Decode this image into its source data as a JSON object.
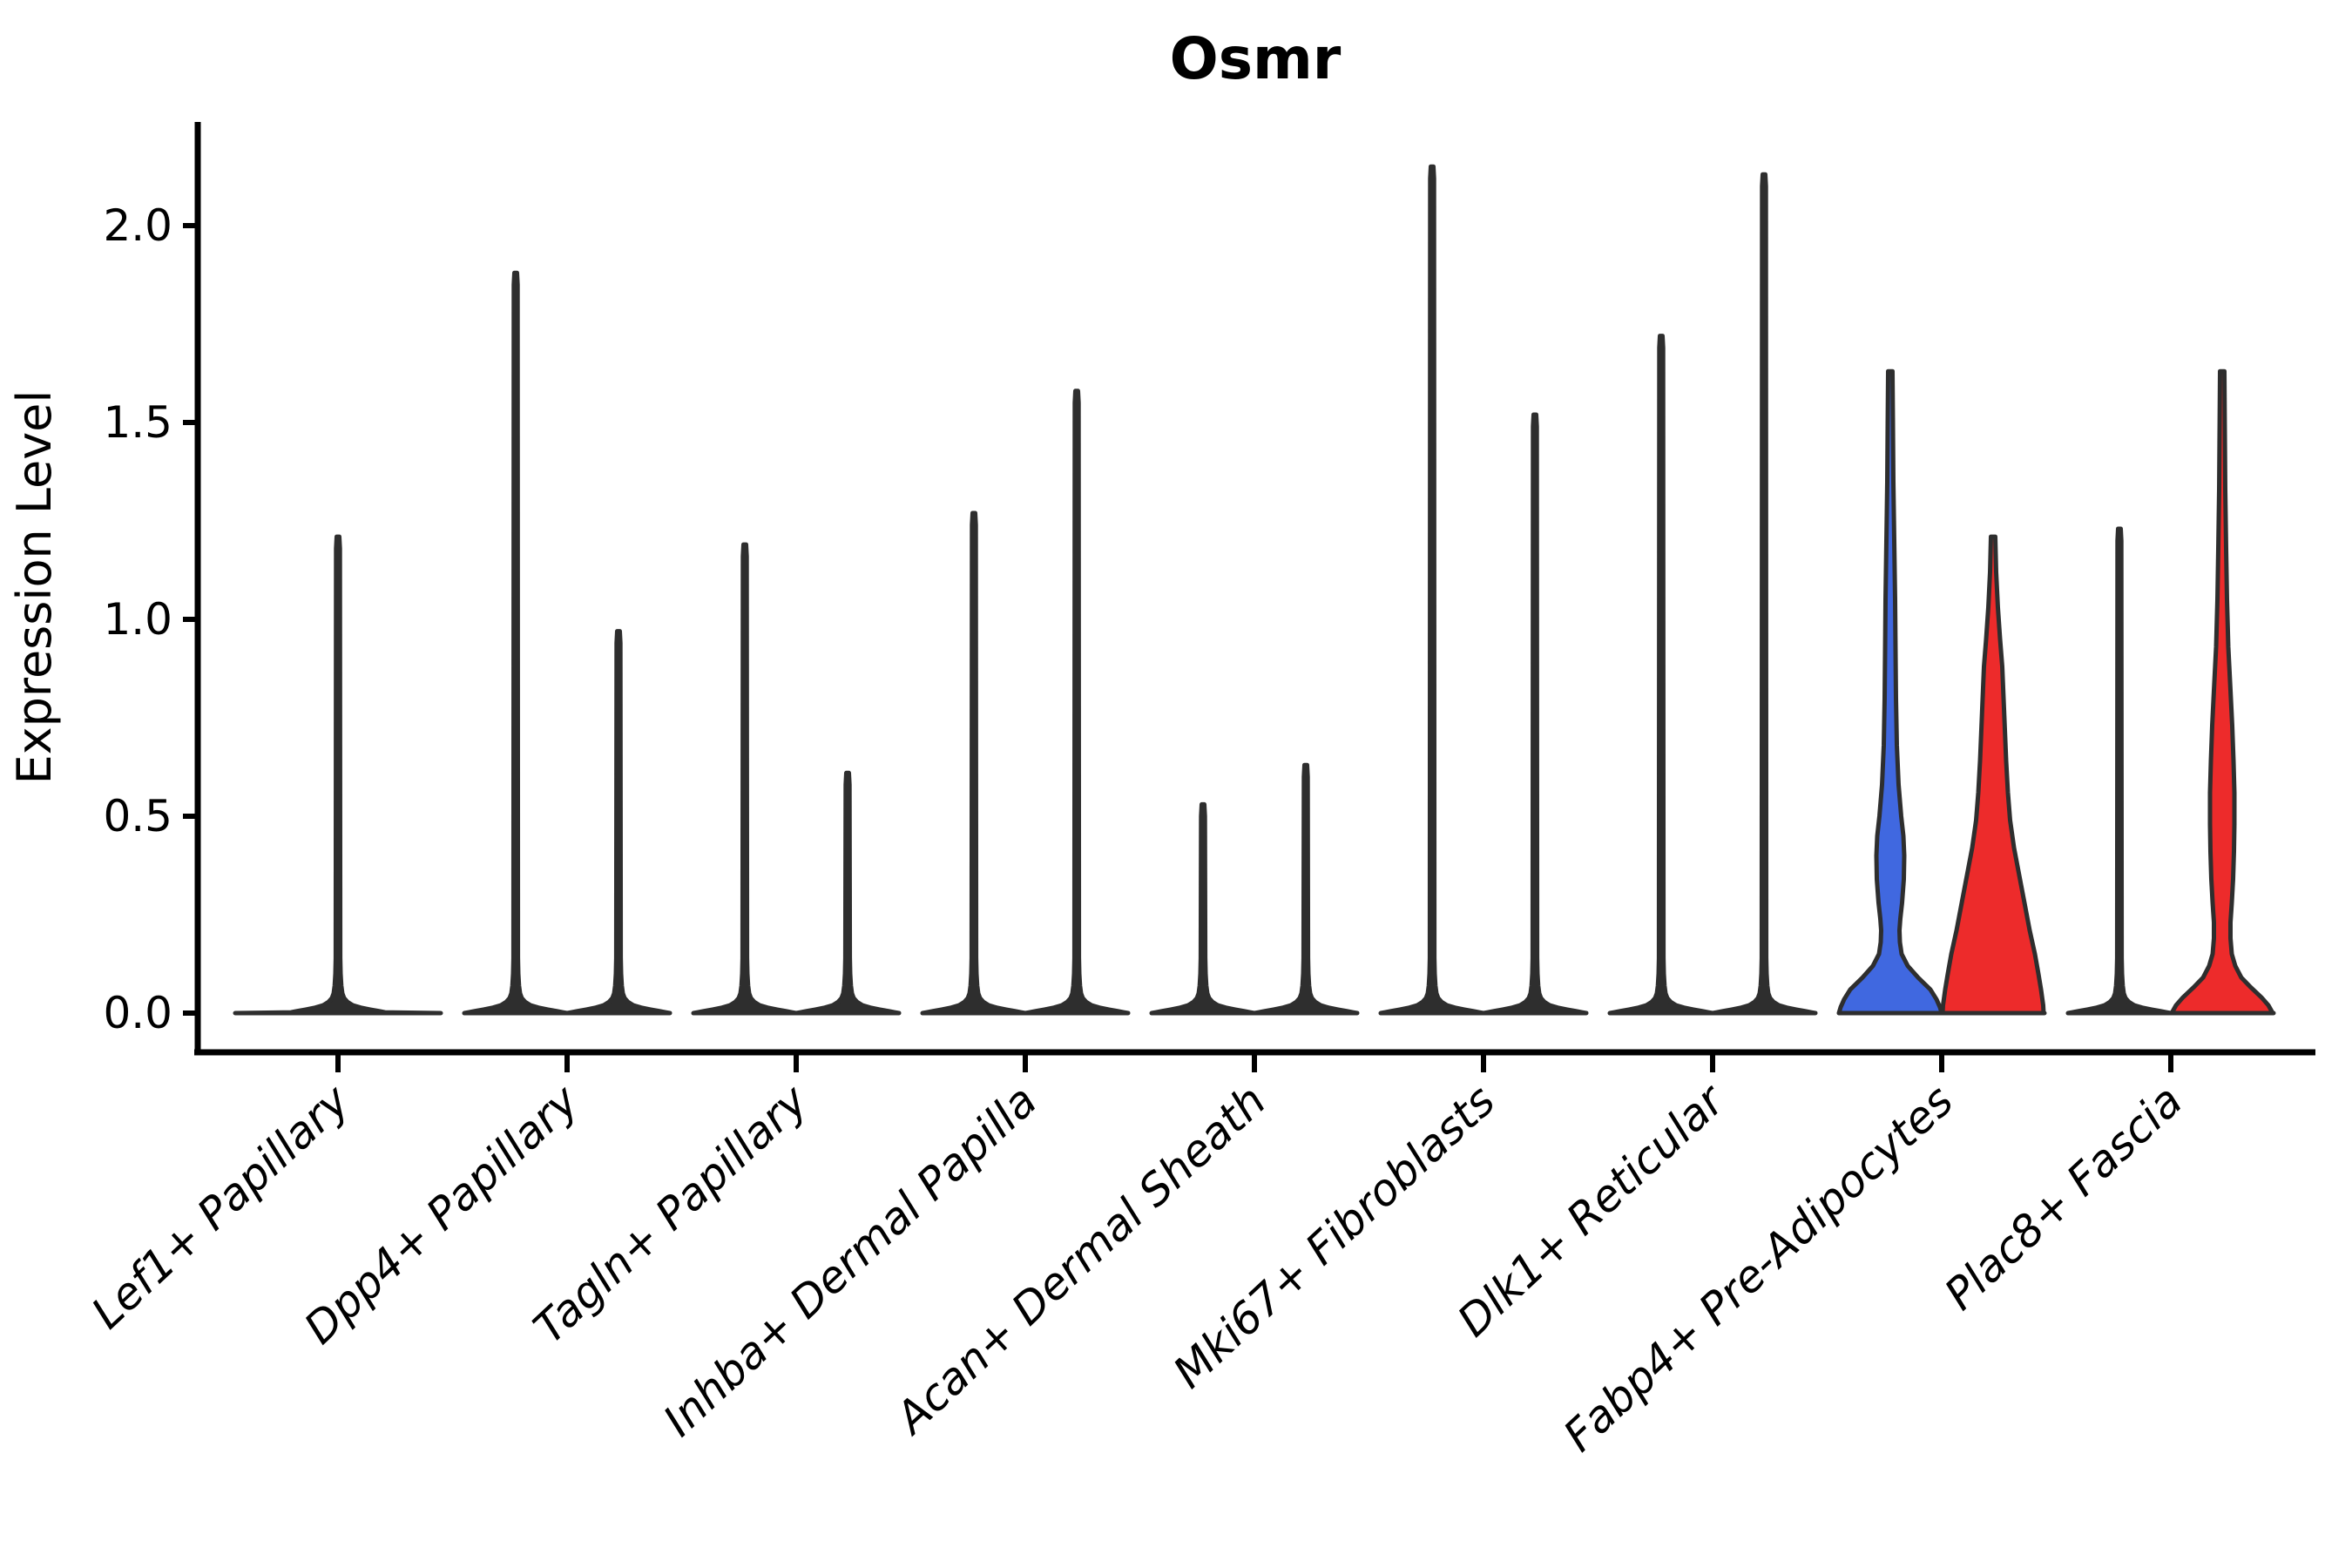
{
  "chart_data": {
    "type": "violin",
    "title": "Osmr",
    "xlabel": "",
    "ylabel": "Expression Level",
    "grid": false,
    "legend": "none",
    "ylim": [
      -0.1,
      2.26
    ],
    "y_ticks": [
      {
        "label": "0.0",
        "value": 0.0
      },
      {
        "label": "0.5",
        "value": 0.5
      },
      {
        "label": "1.0",
        "value": 1.0
      },
      {
        "label": "1.5",
        "value": 1.5
      },
      {
        "label": "2.0",
        "value": 2.0
      }
    ],
    "categories": [
      "Lef1+ Papillary",
      "Dpp4+ Papillary",
      "Tagln+ Papillary",
      "Inhba+ Dermal Papilla",
      "Acan+ Dermal Sheath",
      "Mki67+ Fibroblasts",
      "Dlk1+ Reticular",
      "Fabp4+ Pre-Adipocytes",
      "Plac8+ Fascia"
    ],
    "colors": {
      "violin_outline": "#2E2E2E",
      "fill_blue": "#4068E0",
      "fill_red": "#ED2B2B",
      "axis": "#000000",
      "background": "#ffffff"
    },
    "violins": [
      {
        "category": "Lef1+ Papillary",
        "side": "center",
        "max_expression": 1.21,
        "fill": "none",
        "shape": "spike",
        "note": "single full-width violin, bulk of density at 0"
      },
      {
        "category": "Dpp4+ Papillary",
        "side": "left",
        "max_expression": 1.88,
        "fill": "none",
        "shape": "spike"
      },
      {
        "category": "Dpp4+ Papillary",
        "side": "right",
        "max_expression": 0.97,
        "fill": "none",
        "shape": "spike"
      },
      {
        "category": "Tagln+ Papillary",
        "side": "left",
        "max_expression": 1.19,
        "fill": "none",
        "shape": "spike"
      },
      {
        "category": "Tagln+ Papillary",
        "side": "right",
        "max_expression": 0.61,
        "fill": "none",
        "shape": "spike"
      },
      {
        "category": "Inhba+ Dermal Papilla",
        "side": "left",
        "max_expression": 1.27,
        "fill": "none",
        "shape": "spike"
      },
      {
        "category": "Inhba+ Dermal Papilla",
        "side": "right",
        "max_expression": 1.58,
        "fill": "none",
        "shape": "spike"
      },
      {
        "category": "Acan+ Dermal Sheath",
        "side": "left",
        "max_expression": 0.53,
        "fill": "none",
        "shape": "spike"
      },
      {
        "category": "Acan+ Dermal Sheath",
        "side": "right",
        "max_expression": 0.63,
        "fill": "none",
        "shape": "spike"
      },
      {
        "category": "Mki67+ Fibroblasts",
        "side": "left",
        "max_expression": 2.15,
        "fill": "none",
        "shape": "spike"
      },
      {
        "category": "Mki67+ Fibroblasts",
        "side": "right",
        "max_expression": 1.52,
        "fill": "none",
        "shape": "spike"
      },
      {
        "category": "Dlk1+ Reticular",
        "side": "left",
        "max_expression": 1.72,
        "fill": "none",
        "shape": "spike"
      },
      {
        "category": "Dlk1+ Reticular",
        "side": "right",
        "max_expression": 2.13,
        "fill": "none",
        "shape": "spike"
      },
      {
        "category": "Fabp4+ Pre-Adipocytes",
        "side": "left",
        "max_expression": 1.63,
        "fill": "#4068E0",
        "shape": "bulge"
      },
      {
        "category": "Fabp4+ Pre-Adipocytes",
        "side": "right",
        "max_expression": 1.21,
        "fill": "#ED2B2B",
        "shape": "cone"
      },
      {
        "category": "Plac8+ Fascia",
        "side": "left",
        "max_expression": 1.23,
        "fill": "none",
        "shape": "spike"
      },
      {
        "category": "Plac8+ Fascia",
        "side": "right",
        "max_expression": 1.63,
        "fill": "#ED2B2B",
        "shape": "slim"
      }
    ]
  }
}
